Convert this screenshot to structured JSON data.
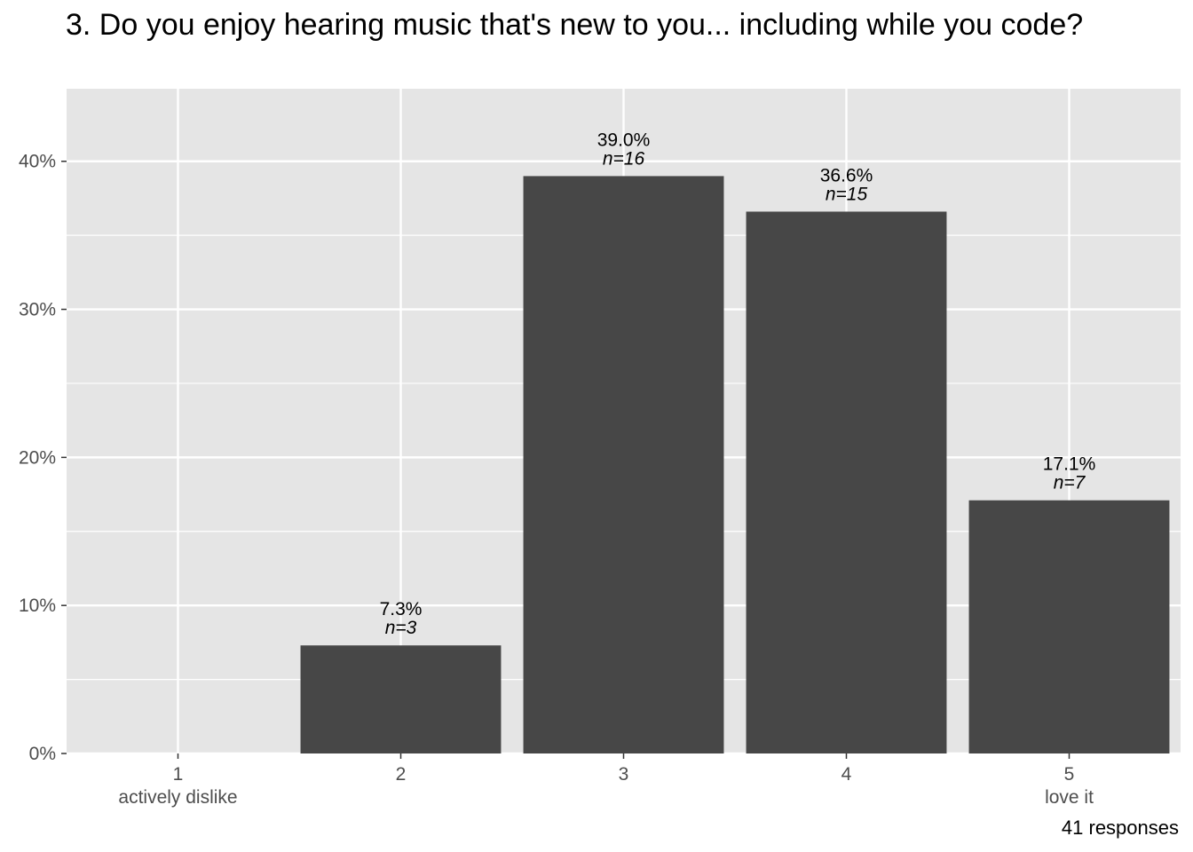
{
  "chart_data": {
    "type": "bar",
    "title": "3. Do you enjoy hearing music that's new to you... including while you code?",
    "categories": [
      "1",
      "2",
      "3",
      "4",
      "5"
    ],
    "category_sublabels": [
      "actively dislike",
      "",
      "",
      "",
      "love it"
    ],
    "values": [
      0,
      7.3,
      39.0,
      36.6,
      17.1
    ],
    "counts": [
      0,
      3,
      16,
      15,
      7
    ],
    "bar_labels": [
      "",
      "7.3%",
      "39.0%",
      "36.6%",
      "17.1%"
    ],
    "count_labels": [
      "",
      "n=3",
      "n=16",
      "n=15",
      "n=7"
    ],
    "xlabel": "",
    "ylabel": "",
    "ylim": [
      0,
      44.9
    ],
    "yticks": [
      0,
      10,
      20,
      30,
      40
    ],
    "ytick_labels": [
      "0%",
      "10%",
      "20%",
      "30%",
      "40%"
    ],
    "grid": true,
    "caption": "41 responses",
    "colors": {
      "bar": "#474747",
      "panel": "#e5e5e5",
      "grid": "#ffffff"
    }
  }
}
